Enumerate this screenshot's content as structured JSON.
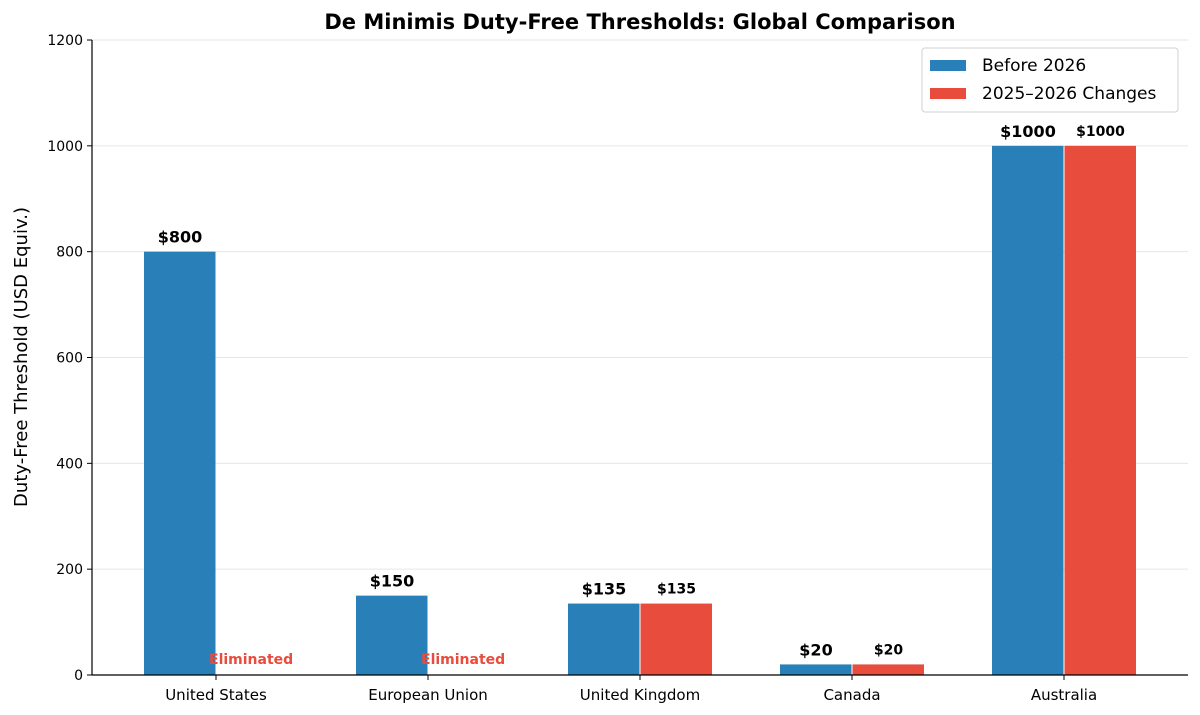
{
  "chart_data": {
    "type": "bar",
    "title": "De Minimis Duty-Free Thresholds: Global Comparison",
    "xlabel": "",
    "ylabel": "Duty-Free Threshold (USD Equiv.)",
    "ylim": [
      0,
      1200
    ],
    "yticks": [
      0,
      200,
      400,
      600,
      800,
      1000,
      1200
    ],
    "grid": "horizontal",
    "legend_position": "top-right",
    "categories": [
      "United States",
      "European Union",
      "United Kingdom",
      "Canada",
      "Australia"
    ],
    "series": [
      {
        "name": "Before 2026",
        "color": "#2980b9",
        "values": [
          800,
          150,
          135,
          20,
          1000
        ],
        "labels": [
          "$800",
          "$150",
          "$135",
          "$20",
          "$1000"
        ]
      },
      {
        "name": "2025–2026 Changes",
        "color": "#e74c3c",
        "values": [
          0,
          0,
          135,
          20,
          1000
        ],
        "labels": [
          "Eliminated",
          "Eliminated",
          "$135",
          "$20",
          "$1000"
        ]
      }
    ]
  }
}
